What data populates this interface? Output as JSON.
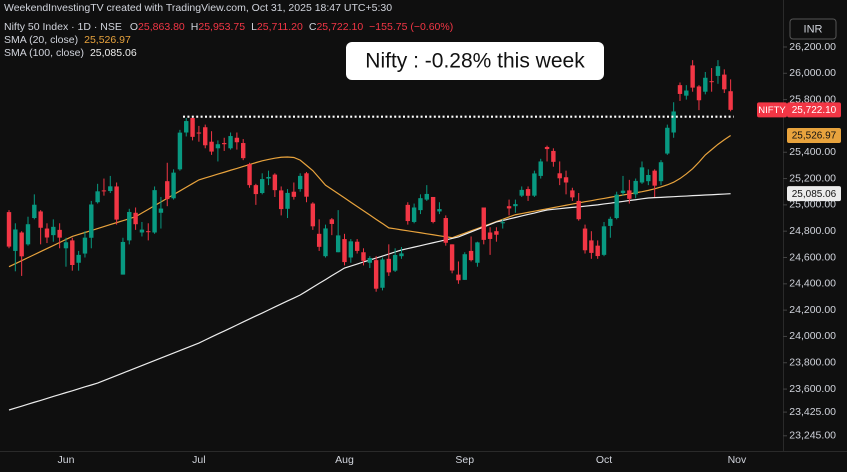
{
  "watermark": "WeekendInvestingTV created with TradingView.com, Oct 31, 2025 18:47 UTC+5:30",
  "currency": "INR",
  "chart_data": {
    "type": "candlestick",
    "title": "Nifty 50 Index · 1D · NSE",
    "legend": {
      "ohlc": [
        {
          "key": "O",
          "value": "25,863.80"
        },
        {
          "key": "H",
          "value": "25,953.75"
        },
        {
          "key": "L",
          "value": "25,711.20"
        },
        {
          "key": "C",
          "value": "25,722.10"
        }
      ],
      "change": "−155.75 (−0.60%)"
    },
    "price_tag": "NIFTY",
    "annotation": "Nifty : -0.28% this week",
    "up_color": "#089981",
    "down_color": "#f23645",
    "grid": false,
    "categories": [
      null,
      null,
      null,
      null,
      null,
      null,
      null,
      null,
      null,
      "Jun",
      null,
      null,
      null,
      null,
      null,
      null,
      null,
      null,
      null,
      null,
      null,
      null,
      null,
      null,
      null,
      null,
      null,
      null,
      null,
      null,
      "Jul",
      null,
      null,
      null,
      null,
      null,
      null,
      null,
      null,
      null,
      null,
      null,
      null,
      null,
      null,
      null,
      null,
      null,
      null,
      null,
      null,
      null,
      null,
      "Aug",
      null,
      null,
      null,
      null,
      null,
      null,
      null,
      null,
      null,
      null,
      null,
      null,
      null,
      null,
      null,
      null,
      null,
      null,
      "Sep",
      null,
      null,
      null,
      null,
      null,
      null,
      null,
      null,
      null,
      null,
      null,
      null,
      null,
      null,
      null,
      null,
      null,
      null,
      null,
      null,
      null,
      "Oct",
      null,
      null,
      null,
      null,
      null,
      null,
      null,
      null,
      null,
      null,
      null,
      null,
      null,
      null,
      null,
      null,
      null,
      null,
      null,
      null
    ],
    "next_category": "Nov",
    "open": [
      24945,
      24650,
      24790,
      24700,
      24900,
      24950,
      24820,
      24770,
      24810,
      24670,
      24730,
      24560,
      24630,
      24750,
      25020,
      25110,
      25105,
      25140,
      24470,
      24730,
      24940,
      24790,
      24800,
      24790,
      24940,
      25180,
      25050,
      25270,
      25550,
      25660,
      25550,
      25590,
      25480,
      25430,
      25470,
      25430,
      25510,
      25470,
      25310,
      25150,
      25090,
      25200,
      25230,
      25110,
      24970,
      25100,
      25120,
      25240,
      25010,
      24780,
      24610,
      24890,
      24640,
      24740,
      24600,
      24720,
      24640,
      24560,
      24580,
      24370,
      24590,
      24500,
      24610,
      25000,
      24870,
      24960,
      25040,
      25060,
      24950,
      24900,
      24700,
      24470,
      24430,
      24650,
      24560,
      24980,
      24790,
      24800,
      24860,
      24990,
      24990,
      25070,
      25120,
      25070,
      25220,
      25440,
      25410,
      25240,
      25210,
      25110,
      25030,
      24820,
      24730,
      24690,
      24620,
      24840,
      24900,
      25090,
      25110,
      25080,
      25170,
      25180,
      25260,
      25180,
      25390,
      25550,
      25910,
      25830,
      26060,
      25900,
      25860,
      25940,
      25980,
      25990,
      25863.8
    ],
    "high": [
      24960,
      24860,
      24800,
      24910,
      25080,
      24960,
      24860,
      24890,
      24860,
      24750,
      24750,
      24650,
      24800,
      25030,
      25160,
      25200,
      25220,
      25170,
      24750,
      24970,
      24980,
      24870,
      24860,
      25140,
      25060,
      25320,
      25270,
      25570,
      25660,
      25670,
      25600,
      25610,
      25560,
      25490,
      25510,
      25550,
      25550,
      25500,
      25320,
      25160,
      25240,
      25260,
      25240,
      25140,
      25120,
      25170,
      25240,
      25250,
      25020,
      24890,
      24850,
      24900,
      24960,
      24780,
      24740,
      24740,
      24670,
      24610,
      24610,
      24600,
      24700,
      24670,
      24680,
      25020,
      25010,
      25080,
      25150,
      25060,
      25020,
      24920,
      24700,
      24570,
      24640,
      24760,
      24720,
      24980,
      24830,
      24830,
      24890,
      25040,
      25040,
      25140,
      25140,
      25260,
      25350,
      25450,
      25430,
      25330,
      25260,
      25130,
      25090,
      24850,
      24800,
      24730,
      24870,
      24910,
      25100,
      25220,
      25190,
      25200,
      25330,
      25270,
      25270,
      25340,
      25610,
      25780,
      25930,
      25910,
      26100,
      25910,
      26010,
      26040,
      26100,
      26030,
      25953.75
    ],
    "low": [
      24670,
      24495,
      24460,
      24690,
      24890,
      24700,
      24710,
      24720,
      24670,
      24530,
      24500,
      24500,
      24600,
      24670,
      25010,
      25070,
      25090,
      24850,
      24470,
      24700,
      24810,
      24760,
      24730,
      24780,
      24820,
      24990,
      25040,
      25260,
      25520,
      25490,
      25480,
      25430,
      25380,
      25330,
      25410,
      25420,
      25420,
      25340,
      25130,
      25000,
      25080,
      25150,
      25060,
      24920,
      24900,
      25040,
      25100,
      25020,
      24810,
      24650,
      24600,
      24770,
      24640,
      24540,
      24560,
      24630,
      24540,
      24520,
      24340,
      24350,
      24460,
      24490,
      24590,
      24850,
      24860,
      24930,
      25030,
      24860,
      24930,
      24690,
      24480,
      24400,
      24430,
      24570,
      24530,
      24700,
      24620,
      24720,
      24820,
      24920,
      24940,
      25060,
      25030,
      25060,
      25200,
      25330,
      25290,
      25150,
      25080,
      25030,
      24880,
      24630,
      24590,
      24590,
      24610,
      24750,
      24890,
      25070,
      25010,
      25050,
      25160,
      25150,
      25060,
      25150,
      25380,
      25510,
      25790,
      25800,
      25860,
      25720,
      25840,
      25860,
      25920,
      25850,
      25711.2
    ],
    "close": [
      24683,
      24813,
      24609,
      24853,
      25001,
      24826,
      24752,
      24833,
      24751,
      24716,
      24543,
      24620,
      24751,
      25003,
      25103,
      25104,
      25141,
      24888,
      24718,
      24946,
      24853,
      24812,
      24793,
      25112,
      24972,
      25044,
      25245,
      25549,
      25637,
      25517,
      25542,
      25453,
      25405,
      25461,
      25461,
      25523,
      25476,
      25355,
      25150,
      25082,
      25196,
      25212,
      25112,
      24968,
      25091,
      25061,
      25220,
      25062,
      24837,
      24681,
      24821,
      24855,
      24768,
      24565,
      24723,
      24650,
      24575,
      24596,
      24363,
      24585,
      24487,
      24619,
      24631,
      24877,
      24980,
      25051,
      25083,
      24870,
      24968,
      24712,
      24501,
      24427,
      24625,
      24580,
      24715,
      24734,
      24741,
      24773,
      24868,
      24973,
      25006,
      25114,
      25069,
      25239,
      25330,
      25424,
      25327,
      25202,
      25170,
      25057,
      24891,
      24655,
      24635,
      24611,
      24837,
      24894,
      25078,
      25108,
      25046,
      25182,
      25285,
      25227,
      25146,
      25324,
      25586,
      25710,
      25843,
      25869,
      25891,
      25795,
      25966,
      25936,
      26054,
      25878,
      25722.1
    ],
    "series": [
      {
        "name": "SMA (20, close)",
        "color": "#e8a33d",
        "last_label": "25,526.97",
        "values": [
          24530,
          24553,
          24576,
          24599,
          24622,
          24645,
          24668,
          24691,
          24714,
          24737,
          24760,
          24775,
          24790,
          24805,
          24820,
          24835,
          24850,
          24865,
          24880,
          24895,
          24910,
          24938,
          24966,
          24994,
          25022,
          25050,
          25078,
          25106,
          25134,
          25162,
          25190,
          25205,
          25219,
          25234,
          25248,
          25263,
          25277,
          25292,
          25306,
          25321,
          25335,
          25345,
          25355,
          25362,
          25364,
          25360,
          25340,
          25300,
          25260,
          25205,
          25150,
          25118,
          25085,
          25053,
          25020,
          24988,
          24955,
          24923,
          24890,
          24858,
          24825,
          24818,
          24810,
          24803,
          24795,
          24788,
          24780,
          24773,
          24765,
          24758,
          24750,
          24768,
          24785,
          24803,
          24820,
          24838,
          24855,
          24873,
          24890,
          24908,
          24925,
          24934,
          24943,
          24952,
          24961,
          24970,
          24979,
          24988,
          24997,
          25006,
          25015,
          25024,
          25032,
          25041,
          25049,
          25058,
          25066,
          25075,
          25083,
          25092,
          25100,
          25110,
          25122,
          25136,
          25152,
          25172,
          25200,
          25235,
          25275,
          25325,
          25380,
          25420,
          25460,
          25495,
          25526.97
        ]
      },
      {
        "name": "SMA (100, close)",
        "color": "#ececec",
        "last_label": "25,085.06",
        "values": [
          23441,
          23456,
          23470,
          23485,
          23500,
          23514,
          23529,
          23544,
          23558,
          23573,
          23587,
          23602,
          23617,
          23631,
          23646,
          23665,
          23684,
          23703,
          23722,
          23741,
          23760,
          23779,
          23798,
          23817,
          23836,
          23855,
          23874,
          23893,
          23912,
          23931,
          23950,
          23973,
          23996,
          24019,
          24041,
          24064,
          24087,
          24110,
          24133,
          24156,
          24178,
          24201,
          24224,
          24247,
          24270,
          24292,
          24315,
          24344,
          24374,
          24403,
          24432,
          24462,
          24491,
          24520,
          24535,
          24550,
          24566,
          24581,
          24596,
          24611,
          24626,
          24642,
          24657,
          24668,
          24679,
          24690,
          24701,
          24712,
          24723,
          24734,
          24745,
          24756,
          24775,
          24794,
          24813,
          24832,
          24851,
          24870,
          24881,
          24893,
          24904,
          24916,
          24927,
          24938,
          24950,
          24961,
          24966,
          24971,
          24976,
          24981,
          24985,
          24990,
          24995,
          25000,
          25007,
          25013,
          25020,
          25026,
          25033,
          25039,
          25046,
          25052,
          25055,
          25057,
          25060,
          25062,
          25065,
          25067,
          25070,
          25072,
          25075,
          25077,
          25080,
          25082,
          25085.06
        ]
      }
    ],
    "reference_line": 25670,
    "ylim": [
      23137,
      26405
    ],
    "yticks": [
      {
        "value": 23245,
        "label": "23,245.00"
      },
      {
        "value": 23425,
        "label": "23,425.00"
      },
      {
        "value": 23600,
        "label": "23,600.00"
      },
      {
        "value": 23800,
        "label": "23,800.00"
      },
      {
        "value": 24000,
        "label": "24,000.00"
      },
      {
        "value": 24200,
        "label": "24,200.00"
      },
      {
        "value": 24400,
        "label": "24,400.00"
      },
      {
        "value": 24600,
        "label": "24,600.00"
      },
      {
        "value": 24800,
        "label": "24,800.00"
      },
      {
        "value": 25000,
        "label": "25,000.00"
      },
      {
        "value": 25200,
        "label": "25,200.00"
      },
      {
        "value": 25400,
        "label": "25,400.00"
      },
      {
        "value": 25800,
        "label": "25,800.00"
      },
      {
        "value": 26000,
        "label": "26,000.00"
      },
      {
        "value": 26200,
        "label": "26,200.00"
      }
    ]
  }
}
